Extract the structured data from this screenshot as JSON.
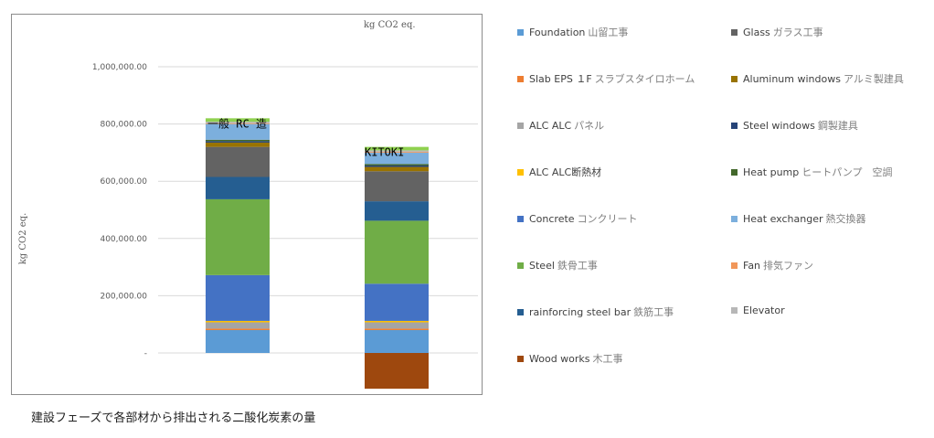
{
  "chart_data": {
    "type": "bar",
    "stacked": true,
    "unit_top": "kg CO2 eq.",
    "ylabel": "kg CO2 eq.",
    "ylim": [
      -130000,
      1000000
    ],
    "yticks": [
      {
        "v": 0,
        "label": "-"
      },
      {
        "v": 200000,
        "label": "200,000.00"
      },
      {
        "v": 400000,
        "label": "400,000.00"
      },
      {
        "v": 600000,
        "label": "600,000.00"
      },
      {
        "v": 800000,
        "label": "800,000.00"
      },
      {
        "v": 1000000,
        "label": "1,000,000.00"
      }
    ],
    "grid": true,
    "legend_position": "right",
    "categories": [
      "一般 RC 造",
      "KITOKI"
    ],
    "series": [
      {
        "name": "Foundation",
        "jp": "山留工事",
        "color": "#5b9bd5",
        "values": [
          80000,
          80000
        ]
      },
      {
        "name": "Slab EPS １F",
        "jp": "スラブスタイロホーム",
        "color": "#ed7d31",
        "values": [
          5000,
          5000
        ]
      },
      {
        "name": "ALC ALC",
        "jp": "パネル",
        "color": "#a5a5a5",
        "values": [
          22000,
          22000
        ]
      },
      {
        "name": "ALC ALC断熱材",
        "jp": "",
        "color": "#ffc000",
        "values": [
          5000,
          5000
        ]
      },
      {
        "name": "Concrete",
        "jp": "コンクリート",
        "color": "#4472c4",
        "values": [
          160000,
          130000
        ]
      },
      {
        "name": "Steel",
        "jp": "鉄骨工事",
        "color": "#70ad47",
        "values": [
          265000,
          220000
        ]
      },
      {
        "name": "rainforcing steel bar",
        "jp": "鉄筋工事",
        "color": "#255e91",
        "values": [
          78000,
          68000
        ]
      },
      {
        "name": "Wood works",
        "jp": "木工事",
        "color": "#9e480e",
        "values": [
          0,
          -125000
        ]
      },
      {
        "name": "Glass",
        "jp": "ガラス工事",
        "color": "#636363",
        "values": [
          105000,
          105000
        ]
      },
      {
        "name": "Aluminum windows",
        "jp": "アルミ製建具",
        "color": "#997300",
        "values": [
          15000,
          15000
        ]
      },
      {
        "name": "Steel windows",
        "jp": "鋼製建具",
        "color": "#264478",
        "values": [
          5000,
          5000
        ]
      },
      {
        "name": "Heat pump",
        "jp": "ヒートパンプ　空調",
        "color": "#43682b",
        "values": [
          5000,
          5000
        ]
      },
      {
        "name": "Heat exchanger",
        "jp": "熱交換器",
        "color": "#7cafdd",
        "values": [
          55000,
          40000
        ]
      },
      {
        "name": "Fan",
        "jp": "排気ファン",
        "color": "#f1975a",
        "values": [
          3000,
          3000
        ]
      },
      {
        "name": "Elevator",
        "jp": "",
        "color": "#b7b7b7",
        "values": [
          5000,
          5000
        ]
      },
      {
        "name": "",
        "jp": "",
        "color": "#8fd14f",
        "values": [
          12000,
          12000
        ]
      }
    ]
  },
  "caption": "建設フェーズで各部材から排出される二酸化炭素の量"
}
